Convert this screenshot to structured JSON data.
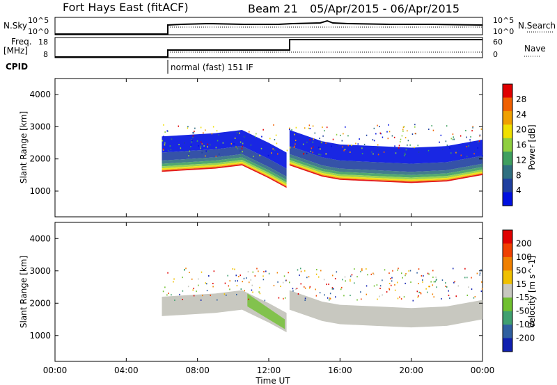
{
  "header": {
    "title": "Fort Hays East (fitACF)",
    "beam": "Beam 21",
    "date_range": "05/Apr/2015 - 06/Apr/2015"
  },
  "panels": {
    "nsky_label": "N.Sky",
    "nsearch_label": "N.Search",
    "nsky_ticks": [
      "10^5",
      "10^0"
    ],
    "nsearch_ticks": [
      "10^5",
      "10^0"
    ],
    "freq_label": "Freq.",
    "freq_unit": "[MHz]",
    "freq_ticks": [
      "18",
      "8"
    ],
    "nave_label": "Nave",
    "nave_ticks": [
      "60",
      "0"
    ],
    "cpid_label": "CPID",
    "cpid_text": "normal (fast) 151 IF"
  },
  "chart_data": [
    {
      "type": "heatmap",
      "name": "power",
      "ylabel": "Slant Range [km]",
      "yticks": [
        "4000",
        "3000",
        "2000",
        "1000"
      ],
      "ylim": [
        200,
        4500
      ],
      "colorbar_label": "Power [dB]",
      "colorbar_ticks": [
        "28",
        "24",
        "20",
        "16",
        "12",
        "8",
        "4"
      ],
      "colors": [
        "#0010e0",
        "#1f3f9f",
        "#2f6f80",
        "#3f9f5f",
        "#8fcf3f",
        "#f0e000",
        "#f0a000",
        "#f06000",
        "#e00000"
      ],
      "data_start_time": "06:00",
      "gap_time": "13:00",
      "echo_band_lower_edge_km": [
        {
          "t": "06:00",
          "km": 1600
        },
        {
          "t": "09:00",
          "km": 1700
        },
        {
          "t": "10:30",
          "km": 1800
        },
        {
          "t": "12:00",
          "km": 1400
        },
        {
          "t": "13:00",
          "km": 1100
        },
        {
          "t": "13:10",
          "km": 1800
        },
        {
          "t": "15:00",
          "km": 1450
        },
        {
          "t": "16:00",
          "km": 1350
        },
        {
          "t": "18:00",
          "km": 1300
        },
        {
          "t": "20:00",
          "km": 1250
        },
        {
          "t": "22:00",
          "km": 1300
        },
        {
          "t": "24:00",
          "km": 1500
        }
      ]
    },
    {
      "type": "heatmap",
      "name": "velocity",
      "ylabel": "Slant Range [km]",
      "yticks": [
        "4000",
        "3000",
        "2000",
        "1000"
      ],
      "ylim": [
        200,
        4500
      ],
      "colorbar_label": "Velocity [m s^-1]",
      "colorbar_ticks": [
        "200",
        "100",
        "50",
        "15",
        "-15",
        "-50",
        "-100",
        "-200"
      ],
      "colors": [
        "#1020b0",
        "#3060a0",
        "#40a070",
        "#70c030",
        "#c8c8c0",
        "#f0c000",
        "#f08000",
        "#f04000",
        "#e00000"
      ],
      "xlabel": "Time UT",
      "xticks": [
        "00:00",
        "04:00",
        "08:00",
        "12:00",
        "16:00",
        "20:00",
        "00:00"
      ],
      "xlim_hours": [
        0,
        24
      ]
    }
  ]
}
